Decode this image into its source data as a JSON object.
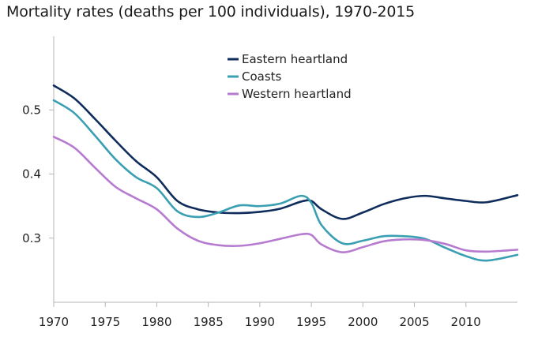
{
  "chart_data": {
    "type": "line",
    "title": "Mortality rates (deaths per 100 individuals), 1970-2015",
    "xlabel": "",
    "ylabel": "",
    "xlim": [
      1970,
      2015
    ],
    "ylim": [
      0.2,
      0.6
    ],
    "x_ticks": [
      1970,
      1975,
      1980,
      1985,
      1990,
      1995,
      2000,
      2005,
      2010
    ],
    "x_tick_labels": [
      "1970",
      "1975",
      "1980",
      "1985",
      "1990",
      "1995",
      "2000",
      "2005",
      "2010"
    ],
    "y_ticks": [
      0.3,
      0.4,
      0.5
    ],
    "y_tick_labels": [
      "0.3",
      "0.4",
      "0.5"
    ],
    "grid": false,
    "legend_position": "top-center",
    "x": [
      1970,
      1972,
      1974,
      1976,
      1978,
      1980,
      1982,
      1984,
      1986,
      1988,
      1990,
      1992,
      1994,
      1995,
      1996,
      1998,
      2000,
      2002,
      2004,
      2006,
      2008,
      2010,
      2012,
      2015
    ],
    "series": [
      {
        "name": "Eastern heartland",
        "color": "#0f2d5c",
        "values": [
          0.538,
          0.518,
          0.486,
          0.452,
          0.42,
          0.395,
          0.358,
          0.345,
          0.34,
          0.339,
          0.341,
          0.346,
          0.357,
          0.358,
          0.345,
          0.33,
          0.34,
          0.353,
          0.362,
          0.366,
          0.362,
          0.358,
          0.356,
          0.367
        ]
      },
      {
        "name": "Coasts",
        "color": "#3a9fb2",
        "values": [
          0.515,
          0.495,
          0.46,
          0.423,
          0.395,
          0.378,
          0.342,
          0.333,
          0.34,
          0.351,
          0.35,
          0.354,
          0.366,
          0.355,
          0.32,
          0.292,
          0.296,
          0.303,
          0.303,
          0.299,
          0.285,
          0.272,
          0.265,
          0.274
        ]
      },
      {
        "name": "Western heartland",
        "color": "#b67bd0",
        "values": [
          0.458,
          0.441,
          0.41,
          0.38,
          0.362,
          0.345,
          0.315,
          0.296,
          0.289,
          0.288,
          0.292,
          0.299,
          0.306,
          0.305,
          0.29,
          0.278,
          0.286,
          0.295,
          0.298,
          0.297,
          0.291,
          0.281,
          0.279,
          0.282
        ]
      }
    ]
  }
}
